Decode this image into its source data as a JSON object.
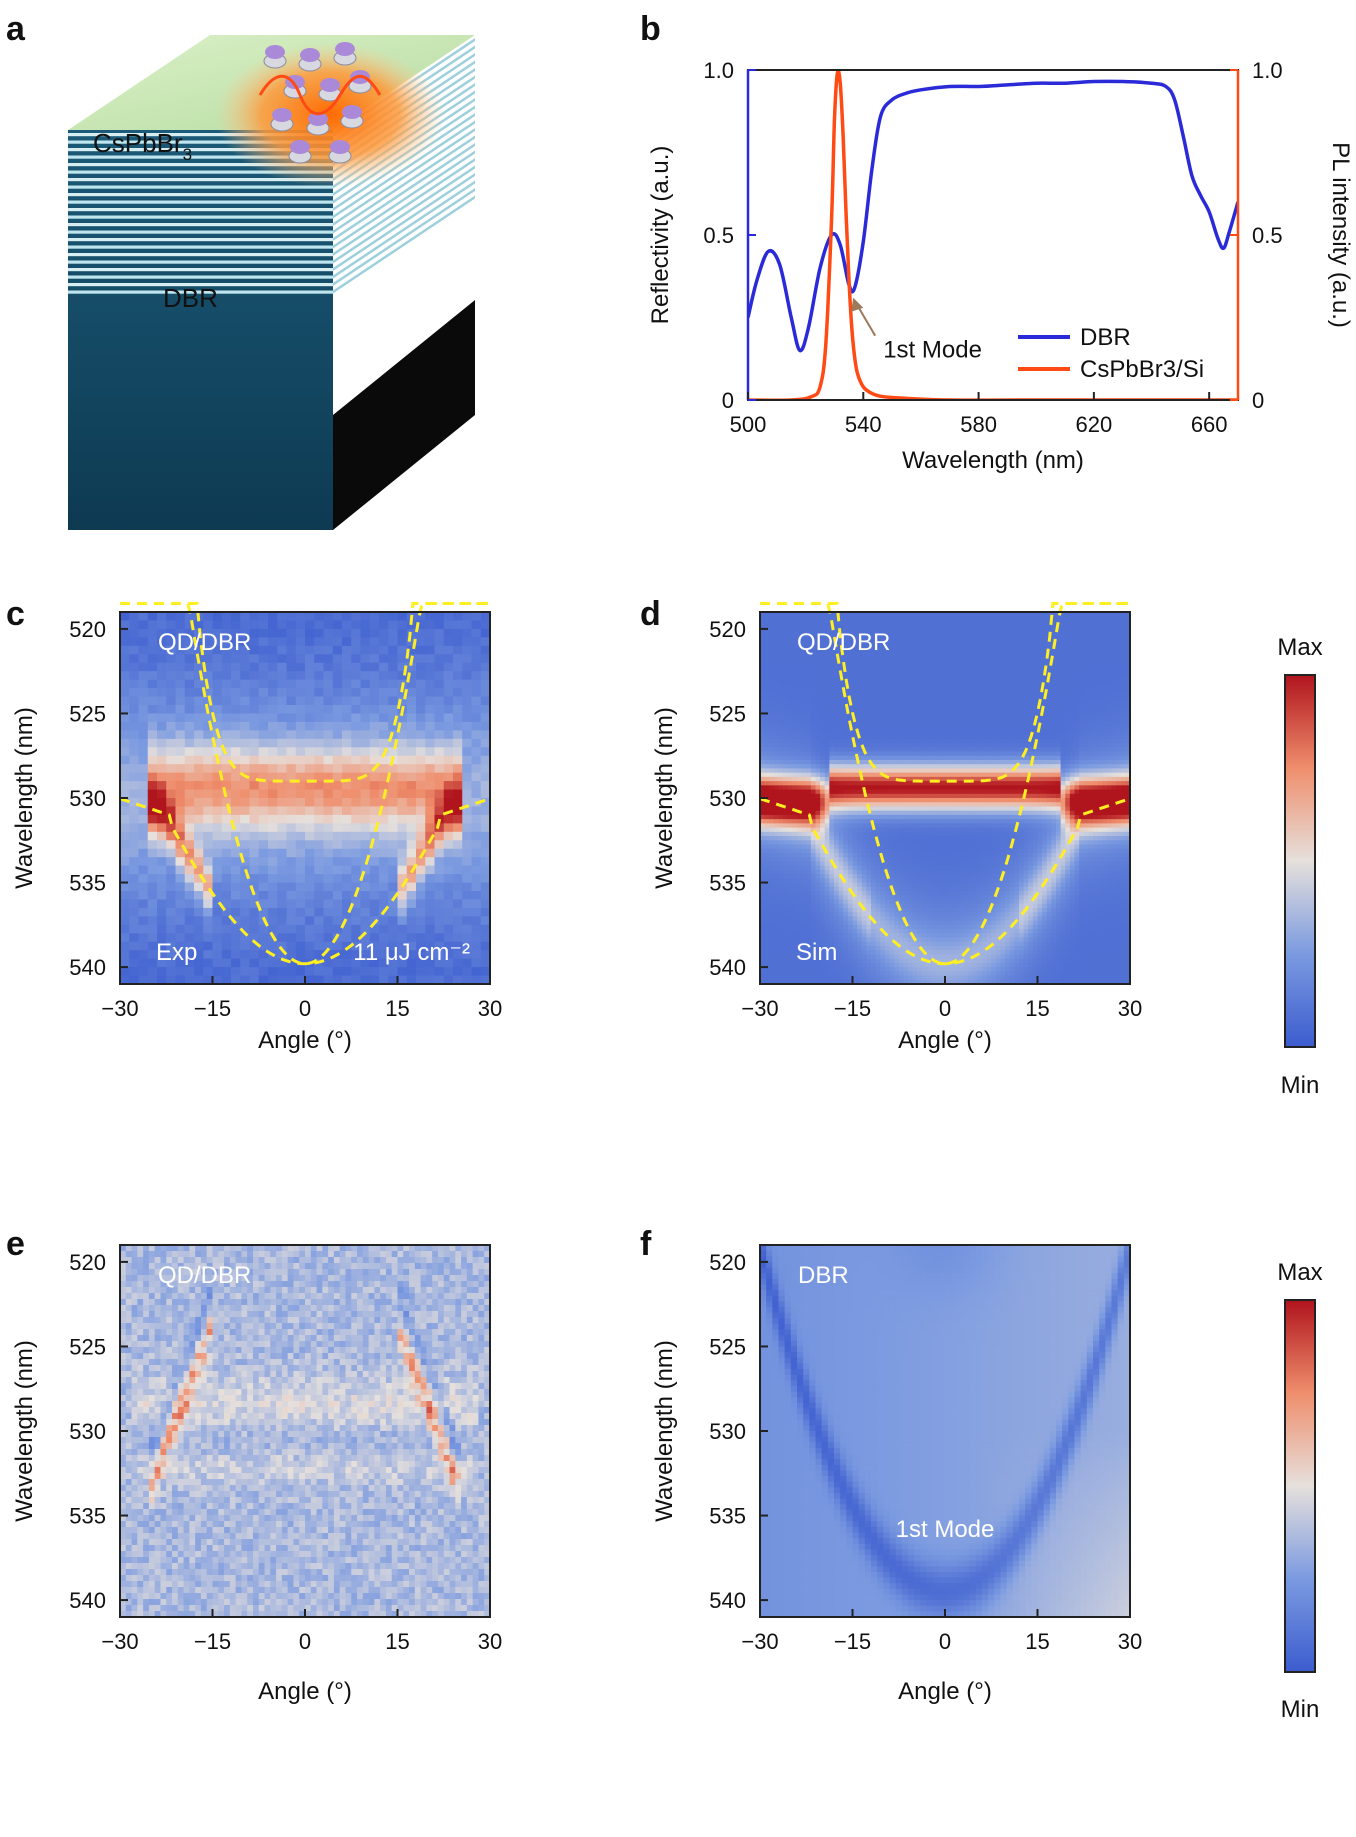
{
  "panels": {
    "a": {
      "letter": "a",
      "film_label": "CsPbBr",
      "film_sub": "3",
      "dbr_label": "DBR"
    },
    "b": {
      "letter": "b"
    },
    "c": {
      "letter": "c"
    },
    "d": {
      "letter": "d"
    },
    "e": {
      "letter": "e"
    },
    "f": {
      "letter": "f"
    }
  },
  "colorbar": {
    "max_label": "Max",
    "min_label": "Min"
  },
  "colors": {
    "dbr_line": "#2a2ad8",
    "pl_line": "#ff4a14",
    "dashed": "#ffee22",
    "map_low": "#3c5ccf",
    "map_mid": "#e6e0dc",
    "map_high": "#b0141d"
  },
  "chart_data": [
    {
      "id": "b",
      "type": "line",
      "title": "",
      "xlabel": "Wavelength (nm)",
      "ylabel": "Reflectivity (a.u.)",
      "y2label": "PL intensity (a.u.)",
      "xlim": [
        500,
        670
      ],
      "ylim": [
        0,
        1
      ],
      "xticks": [
        500,
        540,
        580,
        620,
        660
      ],
      "yticks": [
        0,
        0.5,
        1.0
      ],
      "ytick_labels": [
        "0",
        "0.5",
        "1.0"
      ],
      "y2ticks": [
        0,
        0.5,
        1
      ],
      "y2tick_labels": [
        "0",
        "0.5",
        "1.0"
      ],
      "legend": [
        "DBR",
        "CsPbBr3/Si"
      ],
      "legend_position": "bottom-right",
      "annotation": "1st Mode",
      "series": [
        {
          "name": "DBR",
          "axis": "left",
          "x": [
            500,
            503,
            507,
            511,
            515,
            518,
            521,
            525,
            529,
            532,
            535,
            537,
            540,
            543,
            546,
            550,
            555,
            560,
            570,
            580,
            590,
            600,
            610,
            620,
            630,
            640,
            645,
            648,
            651,
            654,
            657,
            660,
            663,
            665,
            667,
            670
          ],
          "values": [
            0.25,
            0.36,
            0.45,
            0.41,
            0.25,
            0.15,
            0.22,
            0.4,
            0.5,
            0.47,
            0.35,
            0.34,
            0.48,
            0.7,
            0.86,
            0.91,
            0.93,
            0.94,
            0.95,
            0.95,
            0.955,
            0.96,
            0.96,
            0.965,
            0.965,
            0.96,
            0.95,
            0.91,
            0.8,
            0.68,
            0.62,
            0.57,
            0.49,
            0.46,
            0.51,
            0.6
          ]
        },
        {
          "name": "CsPbBr3/Si",
          "axis": "right",
          "x": [
            500,
            515,
            522,
            525,
            527,
            529,
            530,
            531,
            532,
            533,
            534,
            535,
            536,
            537,
            538,
            540,
            543,
            547,
            555,
            570,
            600,
            670
          ],
          "values": [
            0.0,
            0.0,
            0.01,
            0.04,
            0.17,
            0.55,
            0.85,
            0.99,
            0.96,
            0.8,
            0.57,
            0.37,
            0.22,
            0.13,
            0.08,
            0.04,
            0.02,
            0.01,
            0.005,
            0.0,
            0.0,
            0.0
          ]
        }
      ]
    },
    {
      "id": "c",
      "type": "heatmap",
      "xlabel": "Angle (°)",
      "ylabel": "Wavelength (nm)",
      "xlim": [
        -30,
        30
      ],
      "ylim": [
        519,
        541
      ],
      "xticks": [
        -30,
        -15,
        0,
        15,
        30
      ],
      "yticks": [
        520,
        525,
        530,
        535,
        540
      ],
      "labels": [
        "QD/DBR",
        "Exp",
        "11 μJ cm⁻²"
      ],
      "overlay": "dashed polariton branches: upper ~529 nm at 0°, lower ~539.8 nm at 0°"
    },
    {
      "id": "d",
      "type": "heatmap",
      "xlabel": "Angle (°)",
      "ylabel": "Wavelength (nm)",
      "xlim": [
        -30,
        30
      ],
      "ylim": [
        519,
        541
      ],
      "xticks": [
        -30,
        -15,
        0,
        15,
        30
      ],
      "yticks": [
        520,
        525,
        530,
        535,
        540
      ],
      "labels": [
        "QD/DBR",
        "Sim"
      ],
      "colorbar": [
        "Max",
        "Min"
      ]
    },
    {
      "id": "e",
      "type": "heatmap",
      "xlabel": "Angle (°)",
      "ylabel": "Wavelength (nm)",
      "xlim": [
        -30,
        30
      ],
      "ylim": [
        519,
        541
      ],
      "xticks": [
        -30,
        -15,
        0,
        15,
        30
      ],
      "yticks": [
        520,
        525,
        530,
        535,
        540
      ],
      "labels": [
        "QD/DBR"
      ]
    },
    {
      "id": "f",
      "type": "heatmap",
      "xlabel": "Angle (°)",
      "ylabel": "Wavelength (nm)",
      "xlim": [
        -30,
        30
      ],
      "ylim": [
        519,
        541
      ],
      "xticks": [
        -30,
        -15,
        0,
        15,
        30
      ],
      "yticks": [
        520,
        525,
        530,
        535,
        540
      ],
      "labels": [
        "DBR",
        "1st Mode"
      ],
      "colorbar": [
        "Max",
        "Min"
      ]
    }
  ]
}
